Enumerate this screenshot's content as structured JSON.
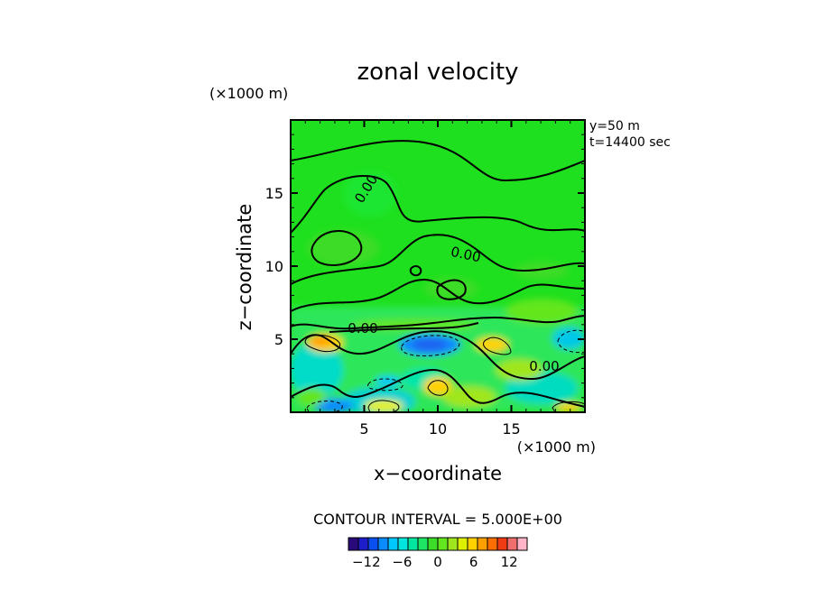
{
  "chart_data": {
    "type": "heatmap",
    "title": "zonal velocity",
    "xlabel": "x−coordinate",
    "ylabel": "z−coordinate",
    "x_unit": "(×1000 m)",
    "y_unit": "(×1000 m)",
    "xlim": [
      0,
      20
    ],
    "ylim": [
      0,
      20
    ],
    "x_ticks": [
      5,
      10,
      15
    ],
    "y_ticks": [
      5,
      10,
      15
    ],
    "annotations": [
      "y=50  m",
      "t=14400 sec"
    ],
    "contour_labels": [
      "0.00",
      "0.00",
      "0.00",
      "0.00"
    ],
    "contour_interval_text": "CONTOUR INTERVAL = 5.000E+00",
    "colorbar": {
      "tick_labels": [
        "−12",
        "−6",
        "0",
        "6",
        "12"
      ],
      "tick_values": [
        -12,
        -6,
        0,
        6,
        12
      ],
      "colors": [
        "#2a0a7a",
        "#1e1ec8",
        "#0a50f0",
        "#0a8cff",
        "#00c8ff",
        "#00e6dc",
        "#00e6a0",
        "#1ee664",
        "#3cdc28",
        "#64e61e",
        "#a0e61e",
        "#dcf000",
        "#ffd200",
        "#ffa000",
        "#ff6e00",
        "#f03c14",
        "#f06e6e",
        "#ffb4c8"
      ]
    }
  }
}
